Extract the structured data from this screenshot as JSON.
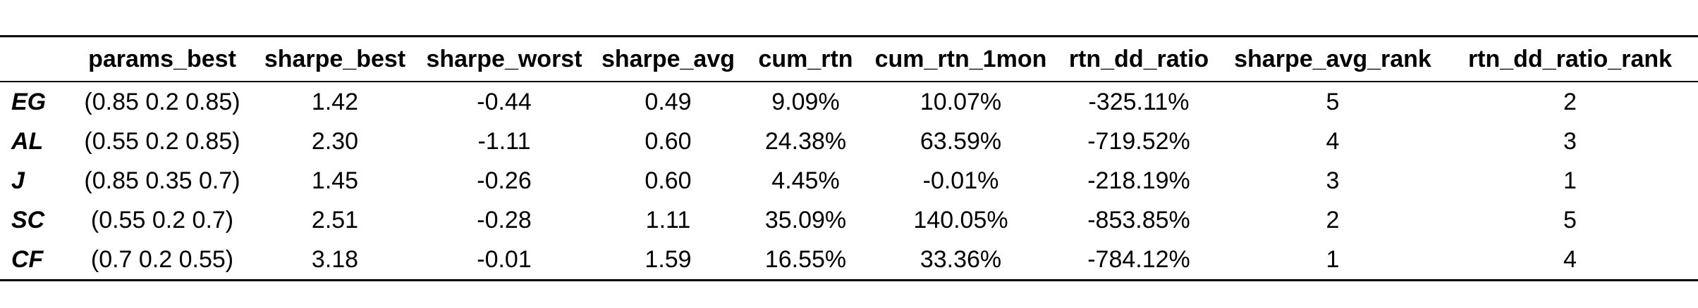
{
  "table": {
    "columns": [
      "",
      "params_best",
      "sharpe_best",
      "sharpe_worst",
      "sharpe_avg",
      "cum_rtn",
      "cum_rtn_1mon",
      "rtn_dd_ratio",
      "sharpe_avg_rank",
      "rtn_dd_ratio_rank"
    ],
    "rows": [
      [
        "EG",
        "(0.85 0.2 0.85)",
        "1.42",
        "-0.44",
        "0.49",
        "9.09%",
        "10.07%",
        "-325.11%",
        "5",
        "2"
      ],
      [
        "AL",
        "(0.55 0.2 0.85)",
        "2.30",
        "-1.11",
        "0.60",
        "24.38%",
        "63.59%",
        "-719.52%",
        "4",
        "3"
      ],
      [
        "J",
        "(0.85 0.35 0.7)",
        "1.45",
        "-0.26",
        "0.60",
        "4.45%",
        "-0.01%",
        "-218.19%",
        "3",
        "1"
      ],
      [
        "SC",
        "(0.55 0.2 0.7)",
        "2.51",
        "-0.28",
        "1.11",
        "35.09%",
        "140.05%",
        "-853.85%",
        "2",
        "5"
      ],
      [
        "CF",
        "(0.7 0.2 0.55)",
        "3.18",
        "-0.01",
        "1.59",
        "16.55%",
        "33.36%",
        "-784.12%",
        "1",
        "4"
      ]
    ]
  }
}
